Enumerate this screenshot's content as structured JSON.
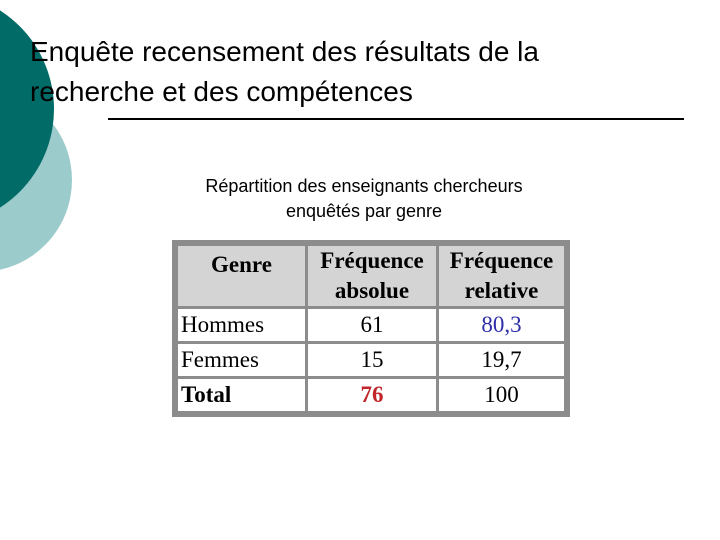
{
  "title": {
    "line1": "Enquête recensement des résultats de la",
    "line2": "recherche et des compétences"
  },
  "subtitle": {
    "line1": "Répartition des enseignants chercheurs",
    "line2": "enquêtés par genre"
  },
  "table": {
    "headers": {
      "genre": "Genre",
      "freq_abs_line1": "Fréquence",
      "freq_abs_line2": "absolue",
      "freq_rel_line1": "Fréquence",
      "freq_rel_line2": "relative"
    },
    "rows": [
      {
        "genre": "Hommes",
        "absolue": "61",
        "relative": "80,3"
      },
      {
        "genre": "Femmes",
        "absolue": "15",
        "relative": "19,7"
      },
      {
        "genre": "Total",
        "absolue": "76",
        "relative": "100"
      }
    ]
  },
  "colors": {
    "accent_dark": "#006b67",
    "accent_light": "#9ccbcc",
    "highlight_blue": "#2e2ea8",
    "highlight_red": "#c0262b"
  }
}
